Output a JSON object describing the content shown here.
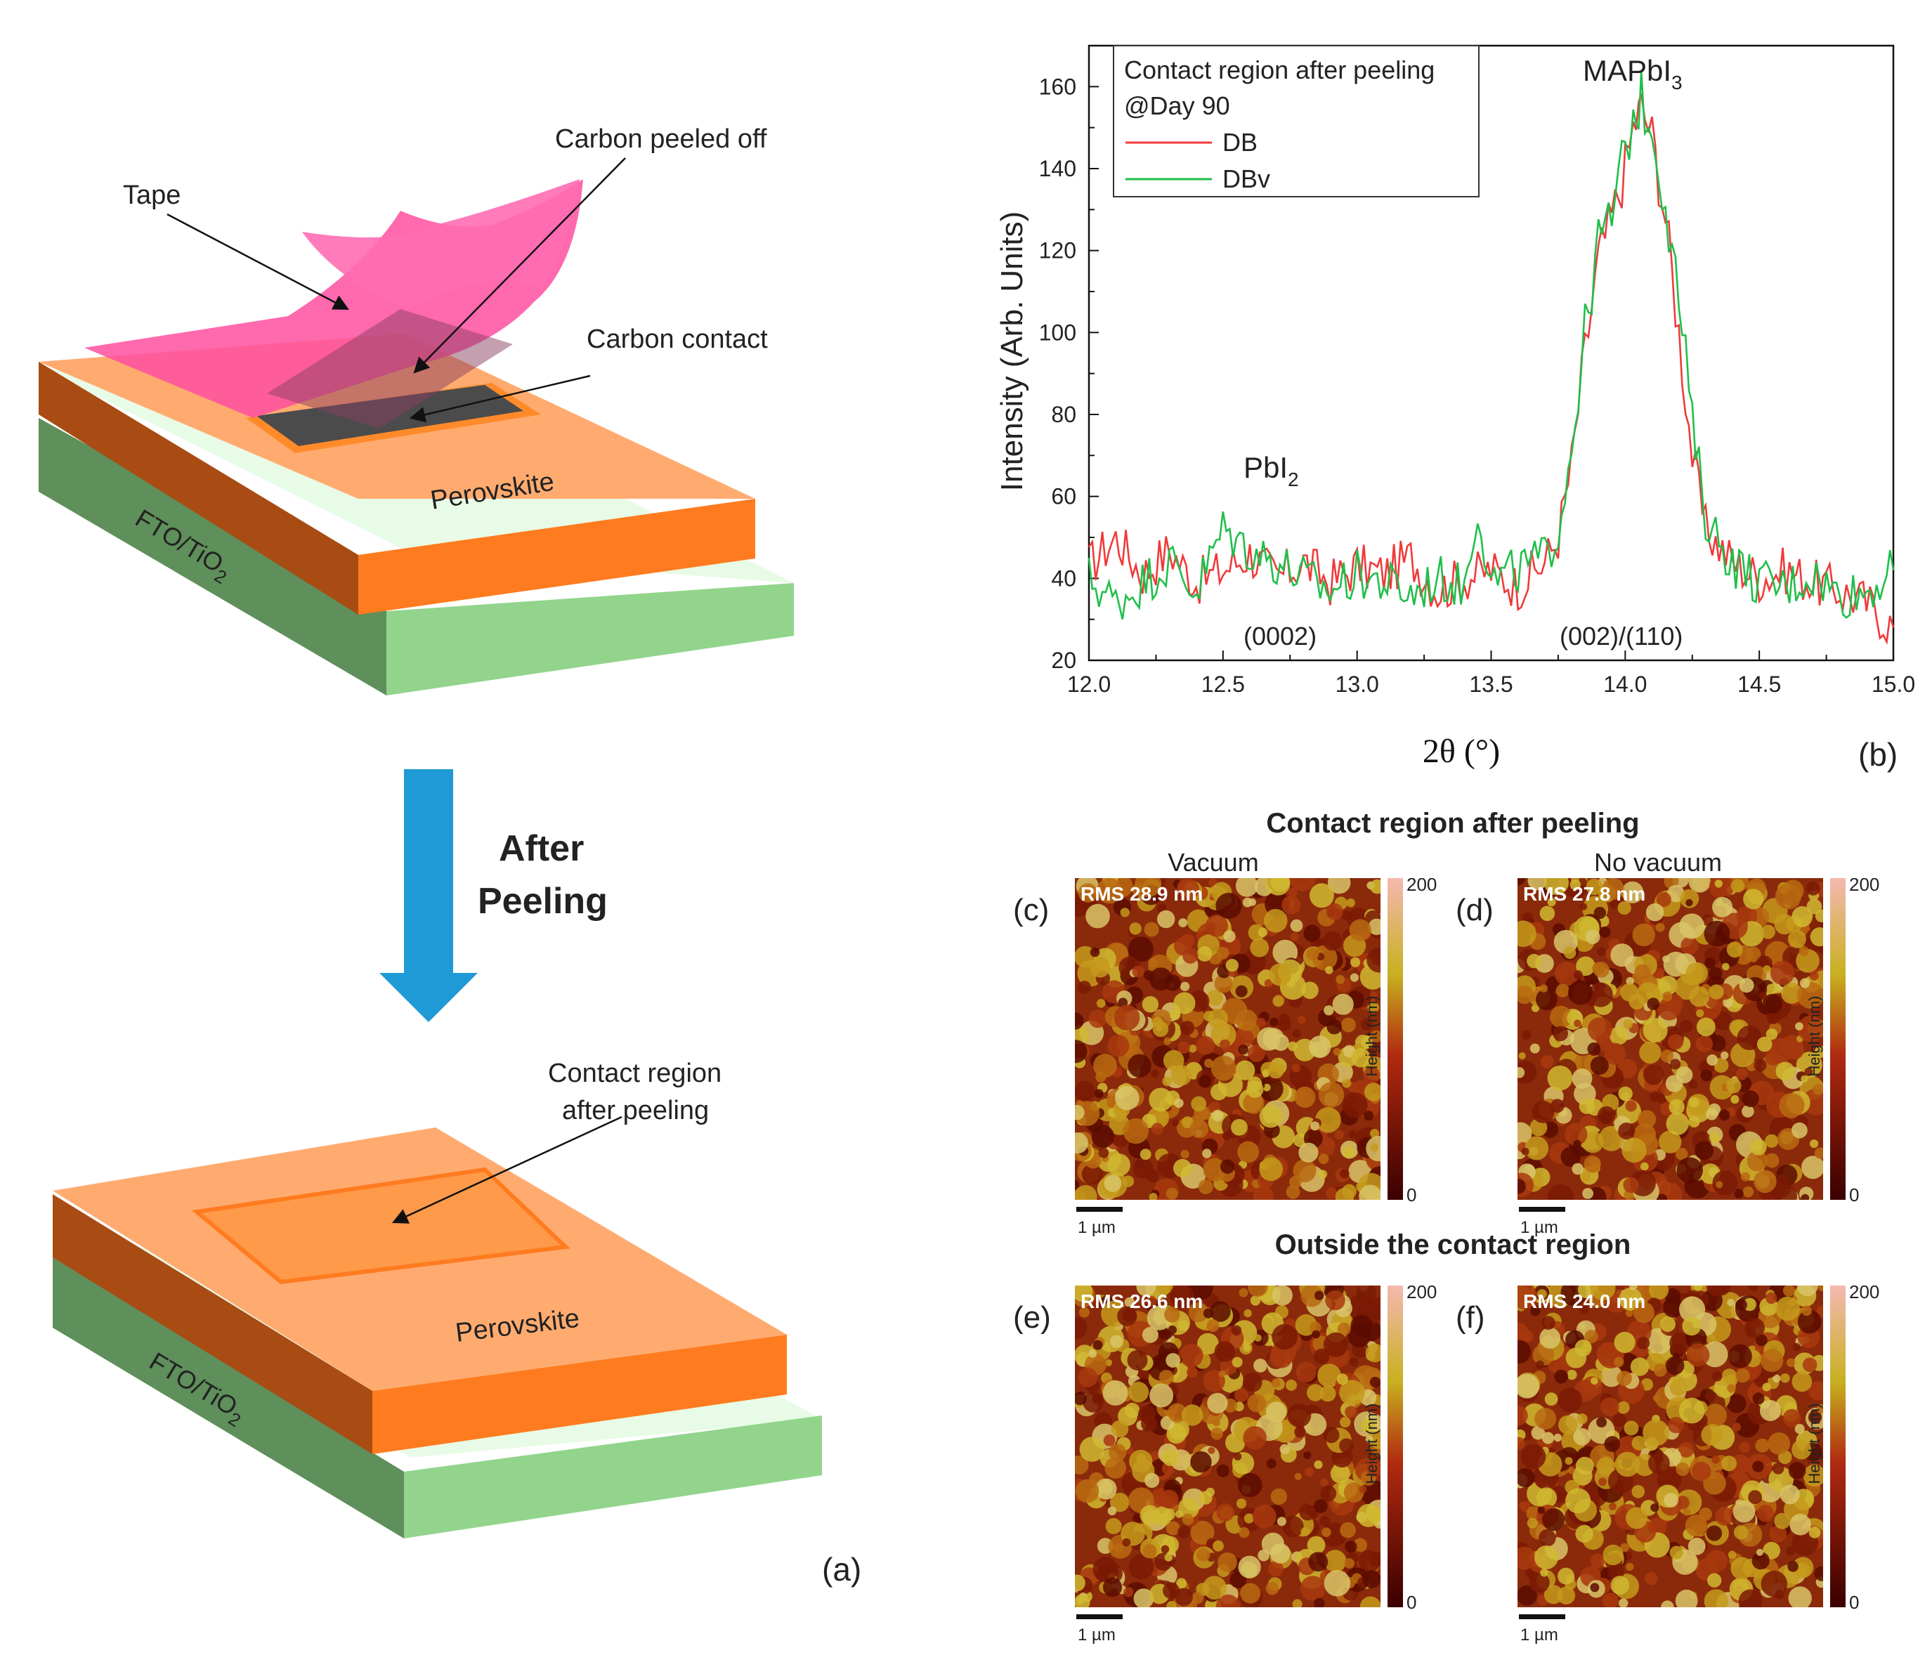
{
  "panel_a": {
    "label": "(a)",
    "before": {
      "tape": "Tape",
      "carbon_peeled": "Carbon peeled off",
      "carbon_contact": "Carbon contact",
      "perovskite": "Perovskite",
      "substrate_main": "FTO/TiO",
      "substrate_sub": "2"
    },
    "arrow_line1": "After",
    "arrow_line2": "Peeling",
    "after": {
      "contact_line1": "Contact region",
      "contact_line2": "after peeling",
      "perovskite": "Perovskite",
      "substrate_main": "FTO/TiO",
      "substrate_sub": "2"
    },
    "colors": {
      "tape": "#ff4fa0",
      "perovskite_top": "#ffab70",
      "perovskite_side": "#ff7b1f",
      "substrate": "#8fd08a",
      "arrow": "#1f9ad6"
    }
  },
  "chart_data": {
    "type": "line",
    "panel_label": "(b)",
    "xlabel": "2θ (°)",
    "ylabel": "Intensity (Arb. Units)",
    "xlim": [
      12.0,
      15.0
    ],
    "ylim": [
      20,
      170
    ],
    "x_ticks": [
      "12.0",
      "12.5",
      "13.0",
      "13.5",
      "14.0",
      "14.5",
      "15.0"
    ],
    "y_ticks": [
      "20",
      "40",
      "60",
      "80",
      "100",
      "120",
      "140",
      "160"
    ],
    "legend": {
      "title_line1": "Contact region after peeling",
      "title_line2": "@Day 90",
      "placement": "top-left"
    },
    "annotations": {
      "pbi2_main": "PbI",
      "pbi2_sub": "2",
      "mapbi_main": "MAPbI",
      "mapbi_sub": "3",
      "peak_pbi2": "(0002)",
      "peak_mapbi": "(002)/(110)"
    },
    "series": [
      {
        "name": "DB",
        "color": "#f03a3a",
        "x": [
          12.0,
          12.1,
          12.2,
          12.3,
          12.4,
          12.5,
          12.6,
          12.7,
          12.8,
          12.9,
          13.0,
          13.1,
          13.2,
          13.3,
          13.4,
          13.5,
          13.6,
          13.7,
          13.75,
          13.8,
          13.85,
          13.9,
          13.95,
          14.0,
          14.03,
          14.06,
          14.1,
          14.15,
          14.2,
          14.25,
          14.3,
          14.4,
          14.5,
          14.6,
          14.7,
          14.8,
          14.9,
          15.0
        ],
        "y": [
          43,
          50,
          41,
          47,
          39,
          42,
          46,
          40,
          44,
          39,
          43,
          41,
          45,
          37,
          40,
          42,
          38,
          44,
          50,
          68,
          95,
          118,
          128,
          140,
          150,
          155,
          148,
          128,
          100,
          70,
          52,
          44,
          40,
          42,
          39,
          37,
          34,
          28
        ]
      },
      {
        "name": "DBv",
        "color": "#1fbf4a",
        "x": [
          12.0,
          12.1,
          12.2,
          12.3,
          12.4,
          12.5,
          12.6,
          12.7,
          12.8,
          12.9,
          13.0,
          13.1,
          13.2,
          13.3,
          13.4,
          13.45,
          13.5,
          13.6,
          13.7,
          13.75,
          13.8,
          13.85,
          13.9,
          13.95,
          14.0,
          14.03,
          14.06,
          14.1,
          14.15,
          14.2,
          14.25,
          14.3,
          14.4,
          14.5,
          14.6,
          14.7,
          14.8,
          14.9,
          15.0
        ],
        "y": [
          40,
          34,
          39,
          44,
          37,
          52,
          47,
          44,
          40,
          37,
          41,
          39,
          36,
          40,
          38,
          58,
          39,
          42,
          45,
          52,
          72,
          100,
          122,
          128,
          145,
          152,
          157,
          150,
          132,
          108,
          78,
          55,
          44,
          39,
          38,
          41,
          36,
          37,
          42
        ]
      }
    ]
  },
  "afm": {
    "title_contact": "Contact region after peeling",
    "title_outside": "Outside the contact region",
    "col_vacuum": "Vacuum",
    "col_novacuum": "No vacuum",
    "colorbar_max": "200",
    "colorbar_min": "0",
    "colorbar_label": "Height (nm)",
    "scalebar": "1 µm",
    "panels": [
      {
        "label": "(c)",
        "rms": "RMS 28.9 nm"
      },
      {
        "label": "(d)",
        "rms": "RMS 27.8 nm"
      },
      {
        "label": "(e)",
        "rms": "RMS 26.6 nm"
      },
      {
        "label": "(f)",
        "rms": "RMS 24.0 nm"
      }
    ]
  }
}
